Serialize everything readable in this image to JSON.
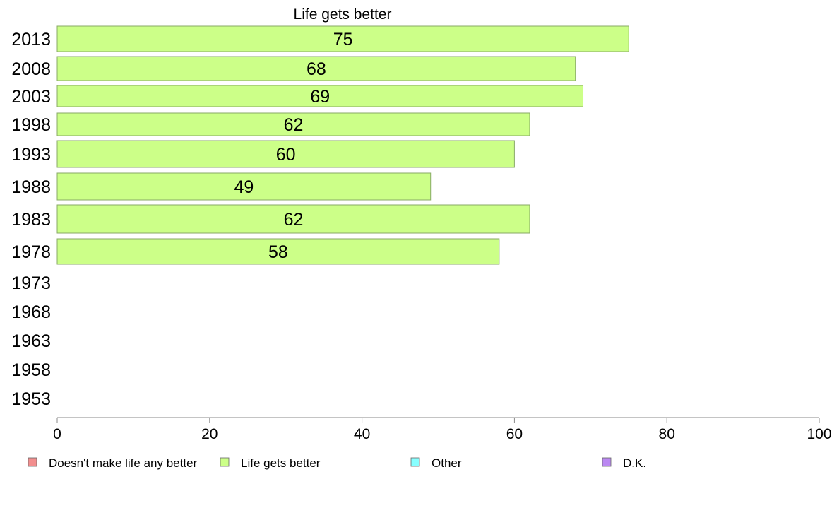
{
  "chart_data": {
    "type": "bar",
    "orientation": "horizontal",
    "title": "Life gets better",
    "categories": [
      "2013",
      "2008",
      "2003",
      "1998",
      "1993",
      "1988",
      "1983",
      "1978",
      "1973",
      "1968",
      "1963",
      "1958",
      "1953"
    ],
    "series": [
      {
        "name": "Life gets better",
        "values": [
          75,
          68,
          69,
          62,
          60,
          49,
          62,
          58,
          null,
          null,
          null,
          null,
          null
        ]
      }
    ],
    "data_labels": [
      "75",
      "68",
      "69",
      "62",
      "60",
      "49",
      "62",
      "58",
      "",
      "",
      "",
      "",
      ""
    ],
    "xlim": [
      0,
      100
    ],
    "xticks": [
      "0",
      "20",
      "40",
      "60",
      "80",
      "100"
    ],
    "grid": false,
    "legend": {
      "placement": "bottom",
      "entries": [
        {
          "name": "Doesn't make life any better",
          "color": "#f28e8e"
        },
        {
          "name": "Life gets better",
          "color": "#ccff88"
        },
        {
          "name": "Other",
          "color": "#88ffff"
        },
        {
          "name": "D.K.",
          "color": "#bb88f2"
        }
      ]
    },
    "colors": {
      "bar_fill": "#ccff88",
      "bar_stroke": "#88aa66",
      "axis": "#888888"
    }
  }
}
